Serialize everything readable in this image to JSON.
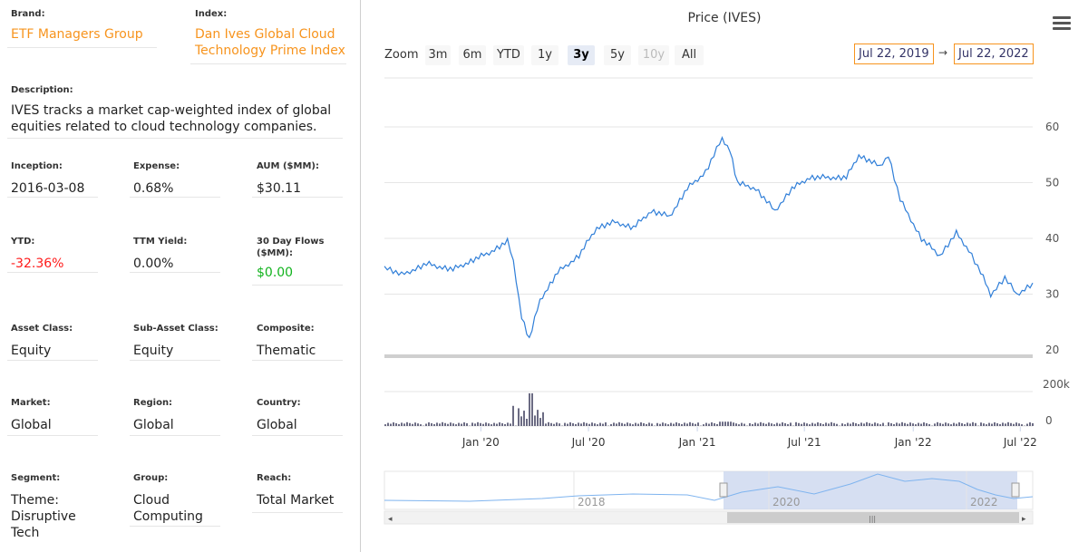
{
  "fields": {
    "brand": {
      "label": "Brand:",
      "value": "ETF Managers Group"
    },
    "index": {
      "label": "Index:",
      "value": "Dan Ives Global Cloud Technology Prime Index"
    },
    "description": {
      "label": "Description:",
      "value": "IVES tracks a market cap-weighted index of global equities related to cloud technology companies."
    },
    "inception": {
      "label": "Inception:",
      "value": "2016-03-08"
    },
    "expense": {
      "label": "Expense:",
      "value": "0.68%"
    },
    "aum": {
      "label": "AUM ($MM):",
      "value": "$30.11"
    },
    "ytd": {
      "label": "YTD:",
      "value": "-32.36%"
    },
    "ttm_yield": {
      "label": "TTM Yield:",
      "value": "0.00%"
    },
    "flows": {
      "label": "30 Day Flows ($MM):",
      "value": "$0.00"
    },
    "asset_class": {
      "label": "Asset Class:",
      "value": "Equity"
    },
    "sub_asset_class": {
      "label": "Sub-Asset Class:",
      "value": "Equity"
    },
    "composite": {
      "label": "Composite:",
      "value": "Thematic"
    },
    "market": {
      "label": "Market:",
      "value": "Global"
    },
    "region": {
      "label": "Region:",
      "value": "Global"
    },
    "country": {
      "label": "Country:",
      "value": "Global"
    },
    "segment": {
      "label": "Segment:",
      "value": "Theme: Disruptive Tech"
    },
    "group": {
      "label": "Group:",
      "value": "Cloud Computing"
    },
    "reach": {
      "label": "Reach:",
      "value": "Total Market"
    }
  },
  "colors": {
    "accent": "#f7941e",
    "negative": "#ff1a1a",
    "positive": "#12b31e",
    "series": "#2f7ed8",
    "volume": "#6b6b83"
  },
  "toolbar": {
    "zoom_label": "Zoom",
    "buttons": [
      "3m",
      "6m",
      "YTD",
      "1y",
      "3y",
      "5y",
      "10y",
      "All"
    ],
    "selected": "3y",
    "disabled": [
      "10y"
    ],
    "date_from": "Jul 22, 2019",
    "date_arrow": "→",
    "date_to": "Jul 22, 2022"
  },
  "chart_data": {
    "type": "line",
    "title": "Price (IVES)",
    "ylim": [
      20,
      60
    ],
    "yticks": [
      20,
      30,
      40,
      50,
      60
    ],
    "x_range": [
      "2019-07-22",
      "2022-07-22"
    ],
    "x_ticks": [
      "Jan '20",
      "Jul '20",
      "Jan '21",
      "Jul '21",
      "Jan '22",
      "Jul '22"
    ],
    "price_series": {
      "dates": [
        "2019-07-22",
        "2019-08-20",
        "2019-10-01",
        "2019-11-15",
        "2019-12-15",
        "2020-01-15",
        "2020-02-15",
        "2020-02-25",
        "2020-03-10",
        "2020-03-23",
        "2020-04-10",
        "2020-05-10",
        "2020-06-15",
        "2020-07-15",
        "2020-08-15",
        "2020-09-15",
        "2020-10-15",
        "2020-11-15",
        "2020-12-15",
        "2021-01-15",
        "2021-02-12",
        "2021-02-25",
        "2021-03-10",
        "2021-04-10",
        "2021-05-12",
        "2021-06-10",
        "2021-07-10",
        "2021-08-10",
        "2021-09-10",
        "2021-10-01",
        "2021-11-05",
        "2021-11-20",
        "2021-12-10",
        "2022-01-15",
        "2022-02-15",
        "2022-03-15",
        "2022-04-05",
        "2022-04-25",
        "2022-05-12",
        "2022-06-05",
        "2022-06-25",
        "2022-07-22"
      ],
      "values": [
        35,
        33.5,
        35.5,
        34.5,
        36,
        37.5,
        39.5,
        36,
        26,
        22,
        29,
        34,
        37,
        42,
        43,
        42,
        45,
        44,
        49,
        52,
        58,
        56,
        50,
        49,
        45,
        49,
        51,
        51,
        51,
        55,
        53,
        55,
        47,
        40,
        37,
        41,
        38,
        34,
        30,
        33,
        30,
        32
      ]
    },
    "volume_axis": {
      "ticks": [
        "200k",
        "0"
      ],
      "ylim_k": [
        0,
        200
      ]
    },
    "navigator_x_ticks": [
      "2018",
      "2020",
      "2022"
    ]
  }
}
